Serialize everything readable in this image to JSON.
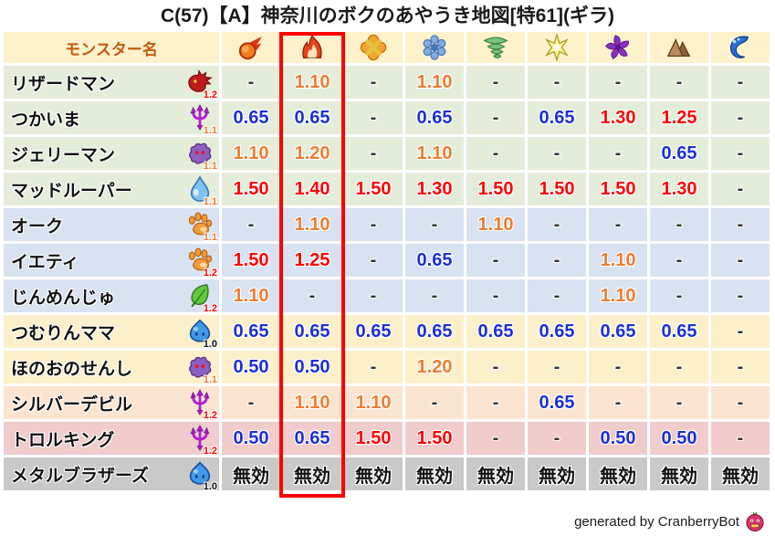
{
  "title": "C(57)【A】神奈川のボクのあやうき地図[特61](ギラ)",
  "table": {
    "name_header": "モンスター名",
    "element_columns": [
      {
        "icon": "meteor-icon",
        "highlighted": false
      },
      {
        "icon": "flame-icon",
        "highlighted": true
      },
      {
        "icon": "burst-icon",
        "highlighted": false
      },
      {
        "icon": "snowflake-icon",
        "highlighted": false
      },
      {
        "icon": "tornado-icon",
        "highlighted": false
      },
      {
        "icon": "spark-icon",
        "highlighted": false
      },
      {
        "icon": "pinwheel-icon",
        "highlighted": false
      },
      {
        "icon": "mountain-icon",
        "highlighted": false
      },
      {
        "icon": "wave-icon",
        "highlighted": false
      }
    ],
    "rows": [
      {
        "name": "リザードマン",
        "icon": "dragon-icon",
        "multiplier": "1.2",
        "row_color": "green",
        "values": [
          "-",
          "1.10",
          "-",
          "1.10",
          "-",
          "-",
          "-",
          "-",
          "-"
        ]
      },
      {
        "name": "つかいま",
        "icon": "trident-icon",
        "multiplier": "1.1",
        "row_color": "green",
        "values": [
          "0.65",
          "0.65",
          "-",
          "0.65",
          "-",
          "0.65",
          "1.30",
          "1.25",
          "-"
        ]
      },
      {
        "name": "ジェリーマン",
        "icon": "jelly-icon",
        "multiplier": "1.1",
        "row_color": "green",
        "values": [
          "1.10",
          "1.20",
          "-",
          "1.10",
          "-",
          "-",
          "-",
          "0.65",
          "-"
        ]
      },
      {
        "name": "マッドルーパー",
        "icon": "drop-icon",
        "multiplier": "1.1",
        "row_color": "green",
        "values": [
          "1.50",
          "1.40",
          "1.50",
          "1.30",
          "1.50",
          "1.50",
          "1.50",
          "1.30",
          "-"
        ]
      },
      {
        "name": "オーク",
        "icon": "paw-icon",
        "multiplier": "1.1",
        "row_color": "blue",
        "values": [
          "-",
          "1.10",
          "-",
          "-",
          "1.10",
          "-",
          "-",
          "-",
          "-"
        ]
      },
      {
        "name": "イエティ",
        "icon": "paw-icon",
        "multiplier": "1.2",
        "row_color": "blue",
        "values": [
          "1.50",
          "1.25",
          "-",
          "0.65",
          "-",
          "-",
          "1.10",
          "-",
          "-"
        ]
      },
      {
        "name": "じんめんじゅ",
        "icon": "leaf-icon",
        "multiplier": "1.2",
        "row_color": "blue",
        "values": [
          "1.10",
          "-",
          "-",
          "-",
          "-",
          "-",
          "1.10",
          "-",
          "-"
        ]
      },
      {
        "name": "つむりんママ",
        "icon": "slime-icon",
        "multiplier": "1.0",
        "row_color": "cream",
        "values": [
          "0.65",
          "0.65",
          "0.65",
          "0.65",
          "0.65",
          "0.65",
          "0.65",
          "0.65",
          "-"
        ]
      },
      {
        "name": "ほのおのせんし",
        "icon": "jelly-icon",
        "multiplier": "1.1",
        "row_color": "cream",
        "values": [
          "0.50",
          "0.50",
          "-",
          "1.20",
          "-",
          "-",
          "-",
          "-",
          "-"
        ]
      },
      {
        "name": "シルバーデビル",
        "icon": "trident-icon",
        "multiplier": "1.2",
        "row_color": "peach",
        "values": [
          "-",
          "1.10",
          "1.10",
          "-",
          "-",
          "0.65",
          "-",
          "-",
          "-"
        ]
      },
      {
        "name": "トロルキング",
        "icon": "trident-icon",
        "multiplier": "1.2",
        "row_color": "pink",
        "values": [
          "0.50",
          "0.65",
          "1.50",
          "1.50",
          "-",
          "-",
          "0.50",
          "0.50",
          "-"
        ]
      },
      {
        "name": "メタルブラザーズ",
        "icon": "slime-icon",
        "multiplier": "1.0",
        "row_color": "gray",
        "values": [
          "無効",
          "無効",
          "無効",
          "無効",
          "無効",
          "無効",
          "無効",
          "無効",
          "無効"
        ]
      }
    ],
    "immune_label": "無効",
    "dash_label": "-"
  },
  "colors": {
    "header_bg": "#fdf2cc",
    "header_text": "#c55a11",
    "row_green": "#e4edda",
    "row_blue": "#d8e2f1",
    "row_cream": "#fcf0cb",
    "row_peach": "#fbe5d1",
    "row_pink": "#f0cccd",
    "row_gray": "#c9c9c9",
    "value_low": "#1c2fd6",
    "value_mid": "#ed7d31",
    "value_high": "#fe0000",
    "dash": "#333333",
    "immune": "#111111",
    "mult_12": "#fe0000",
    "mult_11": "#ed7d31",
    "mult_10": "#111111",
    "highlight_box": "#fe0000"
  },
  "footer": {
    "credit": "generated by CranberryBot",
    "icon": "cranberry-bot-icon"
  }
}
